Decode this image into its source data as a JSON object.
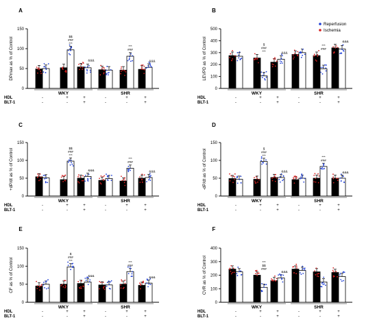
{
  "legend": {
    "position": "top-right",
    "items": [
      {
        "label": "Reperfusion",
        "color": "#1f3fd6"
      },
      {
        "label": "Ischemia",
        "color": "#d62020"
      }
    ]
  },
  "colors": {
    "ischemia_bar": "#000000",
    "reperfusion_bar": "#ffffff",
    "reperfusion_dot": "#1f3fd6",
    "ischemia_dot": "#d62020"
  },
  "treatment_rows": [
    {
      "label": "HDL",
      "signs": [
        "-",
        "+",
        "+"
      ]
    },
    {
      "label": "BLT-1",
      "signs": [
        "-",
        "-",
        "+"
      ]
    }
  ],
  "groups": [
    "WKY",
    "SHR"
  ],
  "chart_data": [
    {
      "panel": "A",
      "type": "bar",
      "ylabel": "DPmax as % of Control",
      "ylim": [
        0,
        150
      ],
      "yticks": [
        0,
        50,
        100,
        150
      ],
      "categories": [
        "WKY -/-",
        "WKY +/-",
        "WKY +/+",
        "SHR -/-",
        "SHR +/-",
        "SHR +/+"
      ],
      "series": [
        {
          "name": "Ischemia",
          "values": [
            49,
            52,
            54,
            47,
            46,
            48
          ]
        },
        {
          "name": "Reperfusion",
          "values": [
            50,
            97,
            52,
            46,
            81,
            53
          ]
        }
      ],
      "annotations": [
        {
          "category": 1,
          "lines": [
            "$$",
            "###",
            "***"
          ]
        },
        {
          "category": 2,
          "lines": [
            "&&&"
          ]
        },
        {
          "category": 4,
          "lines": [
            "***",
            "###"
          ]
        },
        {
          "category": 5,
          "lines": [
            "&&&"
          ]
        }
      ]
    },
    {
      "panel": "B",
      "type": "bar",
      "ylabel": "LEVPD as % of Control",
      "ylim": [
        0,
        500
      ],
      "yticks": [
        0,
        100,
        200,
        300,
        400,
        500
      ],
      "categories": [
        "WKY -/-",
        "WKY +/-",
        "WKY +/+",
        "SHR -/-",
        "SHR +/-",
        "SHR +/+"
      ],
      "series": [
        {
          "name": "Ischemia",
          "values": [
            275,
            255,
            220,
            285,
            275,
            340
          ]
        },
        {
          "name": "Reperfusion",
          "values": [
            270,
            105,
            245,
            300,
            165,
            330
          ]
        }
      ],
      "annotations": [
        {
          "category": 1,
          "lines": [
            "$",
            "###",
            "***"
          ]
        },
        {
          "category": 2,
          "lines": [
            "&&&"
          ]
        },
        {
          "category": 4,
          "lines": [
            "***",
            "###"
          ]
        },
        {
          "category": 5,
          "lines": [
            "&&&"
          ]
        }
      ]
    },
    {
      "panel": "C",
      "type": "bar",
      "ylabel": "+dP/dt as % of Control",
      "ylim": [
        0,
        150
      ],
      "yticks": [
        0,
        50,
        100,
        150
      ],
      "categories": [
        "WKY -/-",
        "WKY +/-",
        "WKY +/+",
        "SHR -/-",
        "SHR +/-",
        "SHR +/+"
      ],
      "series": [
        {
          "name": "Ischemia",
          "values": [
            54,
            46,
            50,
            44,
            42,
            50
          ]
        },
        {
          "name": "Reperfusion",
          "values": [
            51,
            98,
            55,
            49,
            78,
            52
          ]
        }
      ],
      "annotations": [
        {
          "category": 1,
          "lines": [
            "$$",
            "###",
            "***"
          ]
        },
        {
          "category": 2,
          "lines": [
            "&&&"
          ]
        },
        {
          "category": 4,
          "lines": [
            "***",
            "###"
          ]
        },
        {
          "category": 5,
          "lines": [
            "&&&"
          ]
        }
      ]
    },
    {
      "panel": "D",
      "type": "bar",
      "ylabel": "-dP/dt as % of Control",
      "ylim": [
        0,
        150
      ],
      "yticks": [
        0,
        50,
        100,
        150
      ],
      "categories": [
        "WKY -/-",
        "WKY +/-",
        "WKY +/+",
        "SHR -/-",
        "SHR +/-",
        "SHR +/+"
      ],
      "series": [
        {
          "name": "Ischemia",
          "values": [
            49,
            47,
            52,
            46,
            50,
            50
          ]
        },
        {
          "name": "Reperfusion",
          "values": [
            47,
            97,
            52,
            50,
            83,
            50
          ]
        }
      ],
      "annotations": [
        {
          "category": 1,
          "lines": [
            "$",
            "###",
            "***"
          ]
        },
        {
          "category": 2,
          "lines": [
            "&&&"
          ]
        },
        {
          "category": 4,
          "lines": [
            "***",
            "###"
          ]
        },
        {
          "category": 5,
          "lines": [
            "&&&"
          ]
        }
      ]
    },
    {
      "panel": "E",
      "type": "bar",
      "ylabel": "CF as % of Control",
      "ylim": [
        0,
        150
      ],
      "yticks": [
        0,
        50,
        100,
        150
      ],
      "categories": [
        "WKY -/-",
        "WKY +/-",
        "WKY +/+",
        "SHR -/-",
        "SHR +/-",
        "SHR +/+"
      ],
      "series": [
        {
          "name": "Ischemia",
          "values": [
            45,
            50,
            52,
            48,
            50,
            47
          ]
        },
        {
          "name": "Reperfusion",
          "values": [
            50,
            98,
            56,
            48,
            85,
            53
          ]
        }
      ],
      "annotations": [
        {
          "category": 1,
          "lines": [
            "$",
            "###",
            "***"
          ]
        },
        {
          "category": 2,
          "lines": [
            "&&&"
          ]
        },
        {
          "category": 4,
          "lines": [
            "***",
            "###"
          ]
        },
        {
          "category": 5,
          "lines": [
            "&&&"
          ]
        }
      ]
    },
    {
      "panel": "F",
      "type": "bar",
      "ylabel": "CVR as % of Control",
      "ylim": [
        0,
        400
      ],
      "yticks": [
        0,
        100,
        200,
        300,
        400
      ],
      "categories": [
        "WKY -/-",
        "WKY +/-",
        "WKY +/+",
        "SHR -/-",
        "SHR +/-",
        "SHR +/+"
      ],
      "series": [
        {
          "name": "Ischemia",
          "values": [
            245,
            200,
            160,
            245,
            225,
            220
          ]
        },
        {
          "name": "Reperfusion",
          "values": [
            225,
            110,
            180,
            235,
            150,
            190
          ]
        }
      ],
      "annotations": [
        {
          "category": 1,
          "lines": [
            "***",
            "$$",
            "###"
          ]
        },
        {
          "category": 2,
          "lines": [
            "&&&"
          ]
        }
      ]
    }
  ]
}
